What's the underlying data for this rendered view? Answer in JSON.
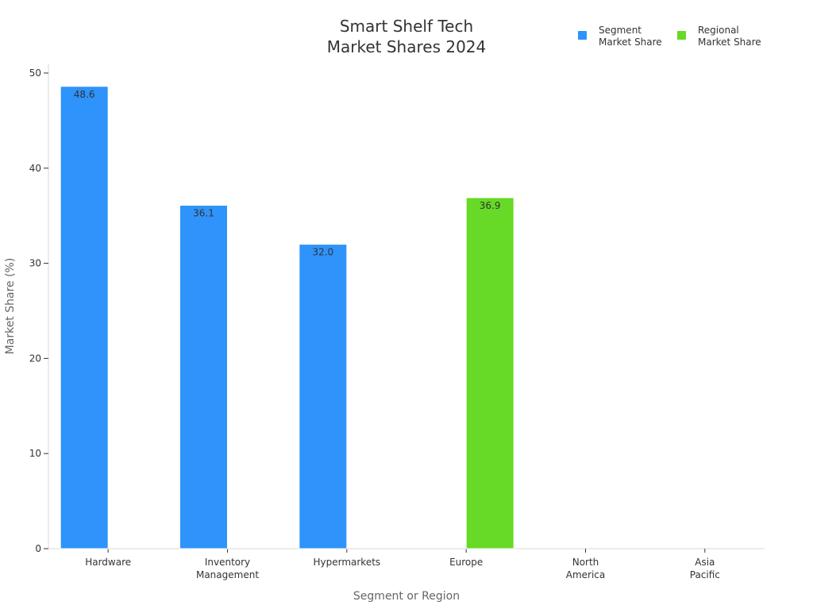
{
  "chart_data": {
    "type": "bar",
    "title": [
      "Smart Shelf Tech",
      "Market Shares 2024"
    ],
    "xlabel": "Segment or Region",
    "ylabel": "Market Share (%)",
    "ylim": [
      0,
      51
    ],
    "yticks": [
      0,
      10,
      20,
      30,
      40,
      50
    ],
    "grid": false,
    "legend_position": "top-right",
    "categories": [
      [
        "Hardware"
      ],
      [
        "Inventory",
        "Management"
      ],
      [
        "Hypermarkets"
      ],
      [
        "Europe"
      ],
      [
        "North",
        "America"
      ],
      [
        "Asia",
        "Pacific"
      ]
    ],
    "series": [
      {
        "name": [
          "Segment",
          "Market Share"
        ],
        "color": "#2E93FA",
        "values": [
          48.6,
          36.1,
          32.0,
          null,
          null,
          null
        ],
        "labels": [
          "48.6",
          "36.1",
          "32.0",
          "",
          "",
          ""
        ]
      },
      {
        "name": [
          "Regional",
          "Market Share"
        ],
        "color": "#66DA26",
        "values": [
          null,
          null,
          null,
          36.9,
          null,
          null
        ],
        "labels": [
          "",
          "",
          "",
          "36.9",
          "",
          ""
        ]
      }
    ]
  }
}
